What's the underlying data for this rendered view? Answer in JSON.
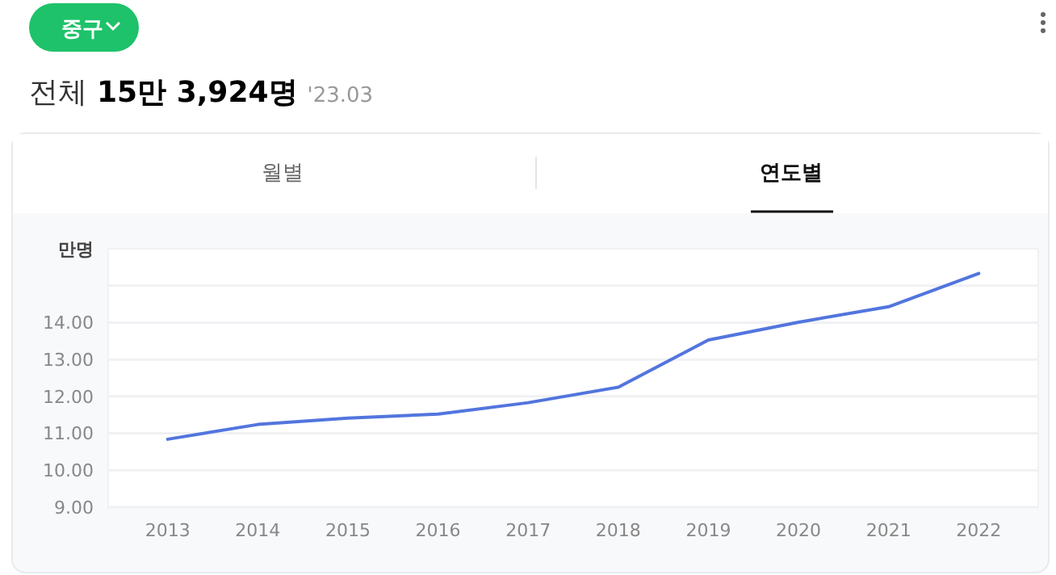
{
  "chart_data": {
    "type": "line",
    "title": "전체 15만 3,924명",
    "subtitle": "'23.03",
    "ylabel": "만명",
    "annotations": [
      "중구",
      "월별",
      "연도별"
    ],
    "categories": [
      "2013",
      "2014",
      "2015",
      "2016",
      "2017",
      "2018",
      "2019",
      "2020",
      "2021",
      "2022"
    ],
    "series": [
      {
        "color": "#5275de",
        "values": [
          10.84,
          11.24,
          11.41,
          11.52,
          11.83,
          12.25,
          13.53,
          14.01,
          14.43,
          15.33
        ]
      }
    ],
    "ylim": [
      9,
      16
    ],
    "yticks": [
      {
        "value": 9,
        "label": "9.00"
      },
      {
        "value": 10,
        "label": "10.00"
      },
      {
        "value": 11,
        "label": "11.00"
      },
      {
        "value": 12,
        "label": "12.00"
      },
      {
        "value": 13,
        "label": "13.00"
      },
      {
        "value": 14,
        "label": "14.00"
      },
      {
        "value": 15,
        "label": null
      }
    ],
    "grid": "y",
    "marker": "none",
    "line_style": "solid"
  }
}
